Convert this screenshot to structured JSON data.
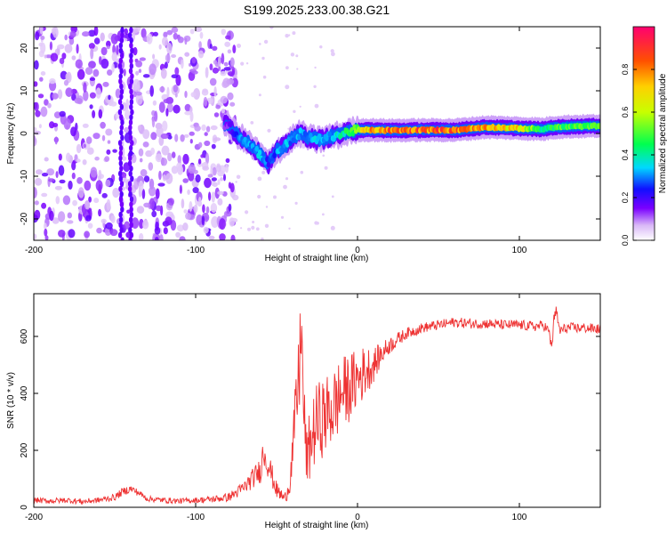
{
  "title": "S199.2025.233.00.38.G21",
  "chart_data": [
    {
      "type": "heatmap",
      "title": "S199.2025.233.00.38.G21",
      "xlabel": "Height of straight line (km)",
      "ylabel": "Frequency (Hz)",
      "xlim": [
        -200,
        150
      ],
      "ylim": [
        -25,
        25
      ],
      "xticks": [
        -200,
        -100,
        0,
        100
      ],
      "xtick_labels": [
        "-200",
        "-100",
        "0",
        "100"
      ],
      "yticks": [
        -20,
        -10,
        0,
        10,
        20
      ],
      "ytick_labels": [
        "-20",
        "-10",
        "0",
        "10",
        "20"
      ],
      "colorbar": {
        "label": "Normalized spectral amplitude",
        "range": [
          0,
          1
        ],
        "ticks": [
          0,
          0.2,
          0.4,
          0.6,
          0.8
        ],
        "tick_labels": [
          "0.0",
          "0.2",
          "0.4",
          "0.6",
          "0.8"
        ]
      },
      "ridge": {
        "description": "dominant frequency track",
        "x": [
          -80,
          -75,
          -70,
          -65,
          -60,
          -55,
          -50,
          -45,
          -40,
          -35,
          -30,
          -25,
          -20,
          -15,
          -10,
          -5,
          0,
          10,
          20,
          40,
          60,
          80,
          100,
          115,
          120,
          130,
          150
        ],
        "freq": [
          2,
          0,
          -1.5,
          -3,
          -5,
          -7,
          -4,
          -3,
          -1,
          0,
          -1,
          -1.5,
          -1.2,
          -0.5,
          -0.3,
          0.5,
          0.8,
          0.8,
          0.7,
          0.8,
          0.8,
          1.5,
          1.2,
          1.0,
          1.4,
          1.6,
          1.8
        ],
        "amplitude": [
          0.15,
          0.25,
          0.35,
          0.3,
          0.35,
          0.25,
          0.3,
          0.35,
          0.3,
          0.35,
          0.3,
          0.35,
          0.3,
          0.35,
          0.4,
          0.5,
          0.6,
          0.8,
          0.85,
          0.9,
          0.85,
          0.75,
          0.7,
          0.45,
          0.5,
          0.5,
          0.5
        ]
      }
    },
    {
      "type": "line",
      "xlabel": "Height of straight line (km)",
      "ylabel": "SNR (10 * v/v)",
      "xlim": [
        -200,
        150
      ],
      "ylim": [
        0,
        750
      ],
      "xticks": [
        -200,
        -100,
        0,
        100
      ],
      "xtick_labels": [
        "-200",
        "-100",
        "0",
        "100"
      ],
      "yticks": [
        0,
        200,
        400,
        600
      ],
      "ytick_labels": [
        "0",
        "200",
        "400",
        "600"
      ],
      "color": "#ee3333",
      "series": [
        {
          "name": "SNR",
          "x": [
            -200,
            -190,
            -180,
            -170,
            -160,
            -150,
            -145,
            -140,
            -135,
            -130,
            -120,
            -110,
            -100,
            -90,
            -80,
            -75,
            -70,
            -65,
            -60,
            -58,
            -55,
            -50,
            -45,
            -42,
            -40,
            -38,
            -36,
            -35,
            -33,
            -31,
            -30,
            -28,
            -25,
            -20,
            -15,
            -10,
            -5,
            0,
            5,
            10,
            15,
            20,
            25,
            30,
            40,
            50,
            60,
            70,
            80,
            90,
            100,
            110,
            115,
            118,
            120,
            122,
            125,
            130,
            140,
            150
          ],
          "y": [
            25,
            22,
            25,
            20,
            25,
            35,
            55,
            65,
            50,
            30,
            25,
            22,
            25,
            28,
            35,
            50,
            70,
            100,
            130,
            200,
            150,
            60,
            30,
            80,
            200,
            350,
            450,
            680,
            300,
            150,
            200,
            250,
            300,
            320,
            350,
            400,
            420,
            450,
            480,
            500,
            540,
            570,
            590,
            610,
            630,
            640,
            650,
            645,
            645,
            640,
            640,
            635,
            640,
            620,
            560,
            700,
            620,
            630,
            630,
            625
          ],
          "noise_amplitude": [
            10,
            10,
            10,
            10,
            10,
            12,
            14,
            14,
            12,
            10,
            10,
            10,
            10,
            12,
            15,
            20,
            25,
            35,
            45,
            60,
            50,
            30,
            20,
            40,
            80,
            130,
            170,
            150,
            140,
            100,
            120,
            130,
            140,
            140,
            140,
            130,
            120,
            110,
            90,
            60,
            40,
            30,
            25,
            20,
            18,
            18,
            18,
            18,
            18,
            18,
            18,
            18,
            18,
            18,
            25,
            30,
            20,
            18,
            18,
            18
          ]
        }
      ]
    }
  ]
}
